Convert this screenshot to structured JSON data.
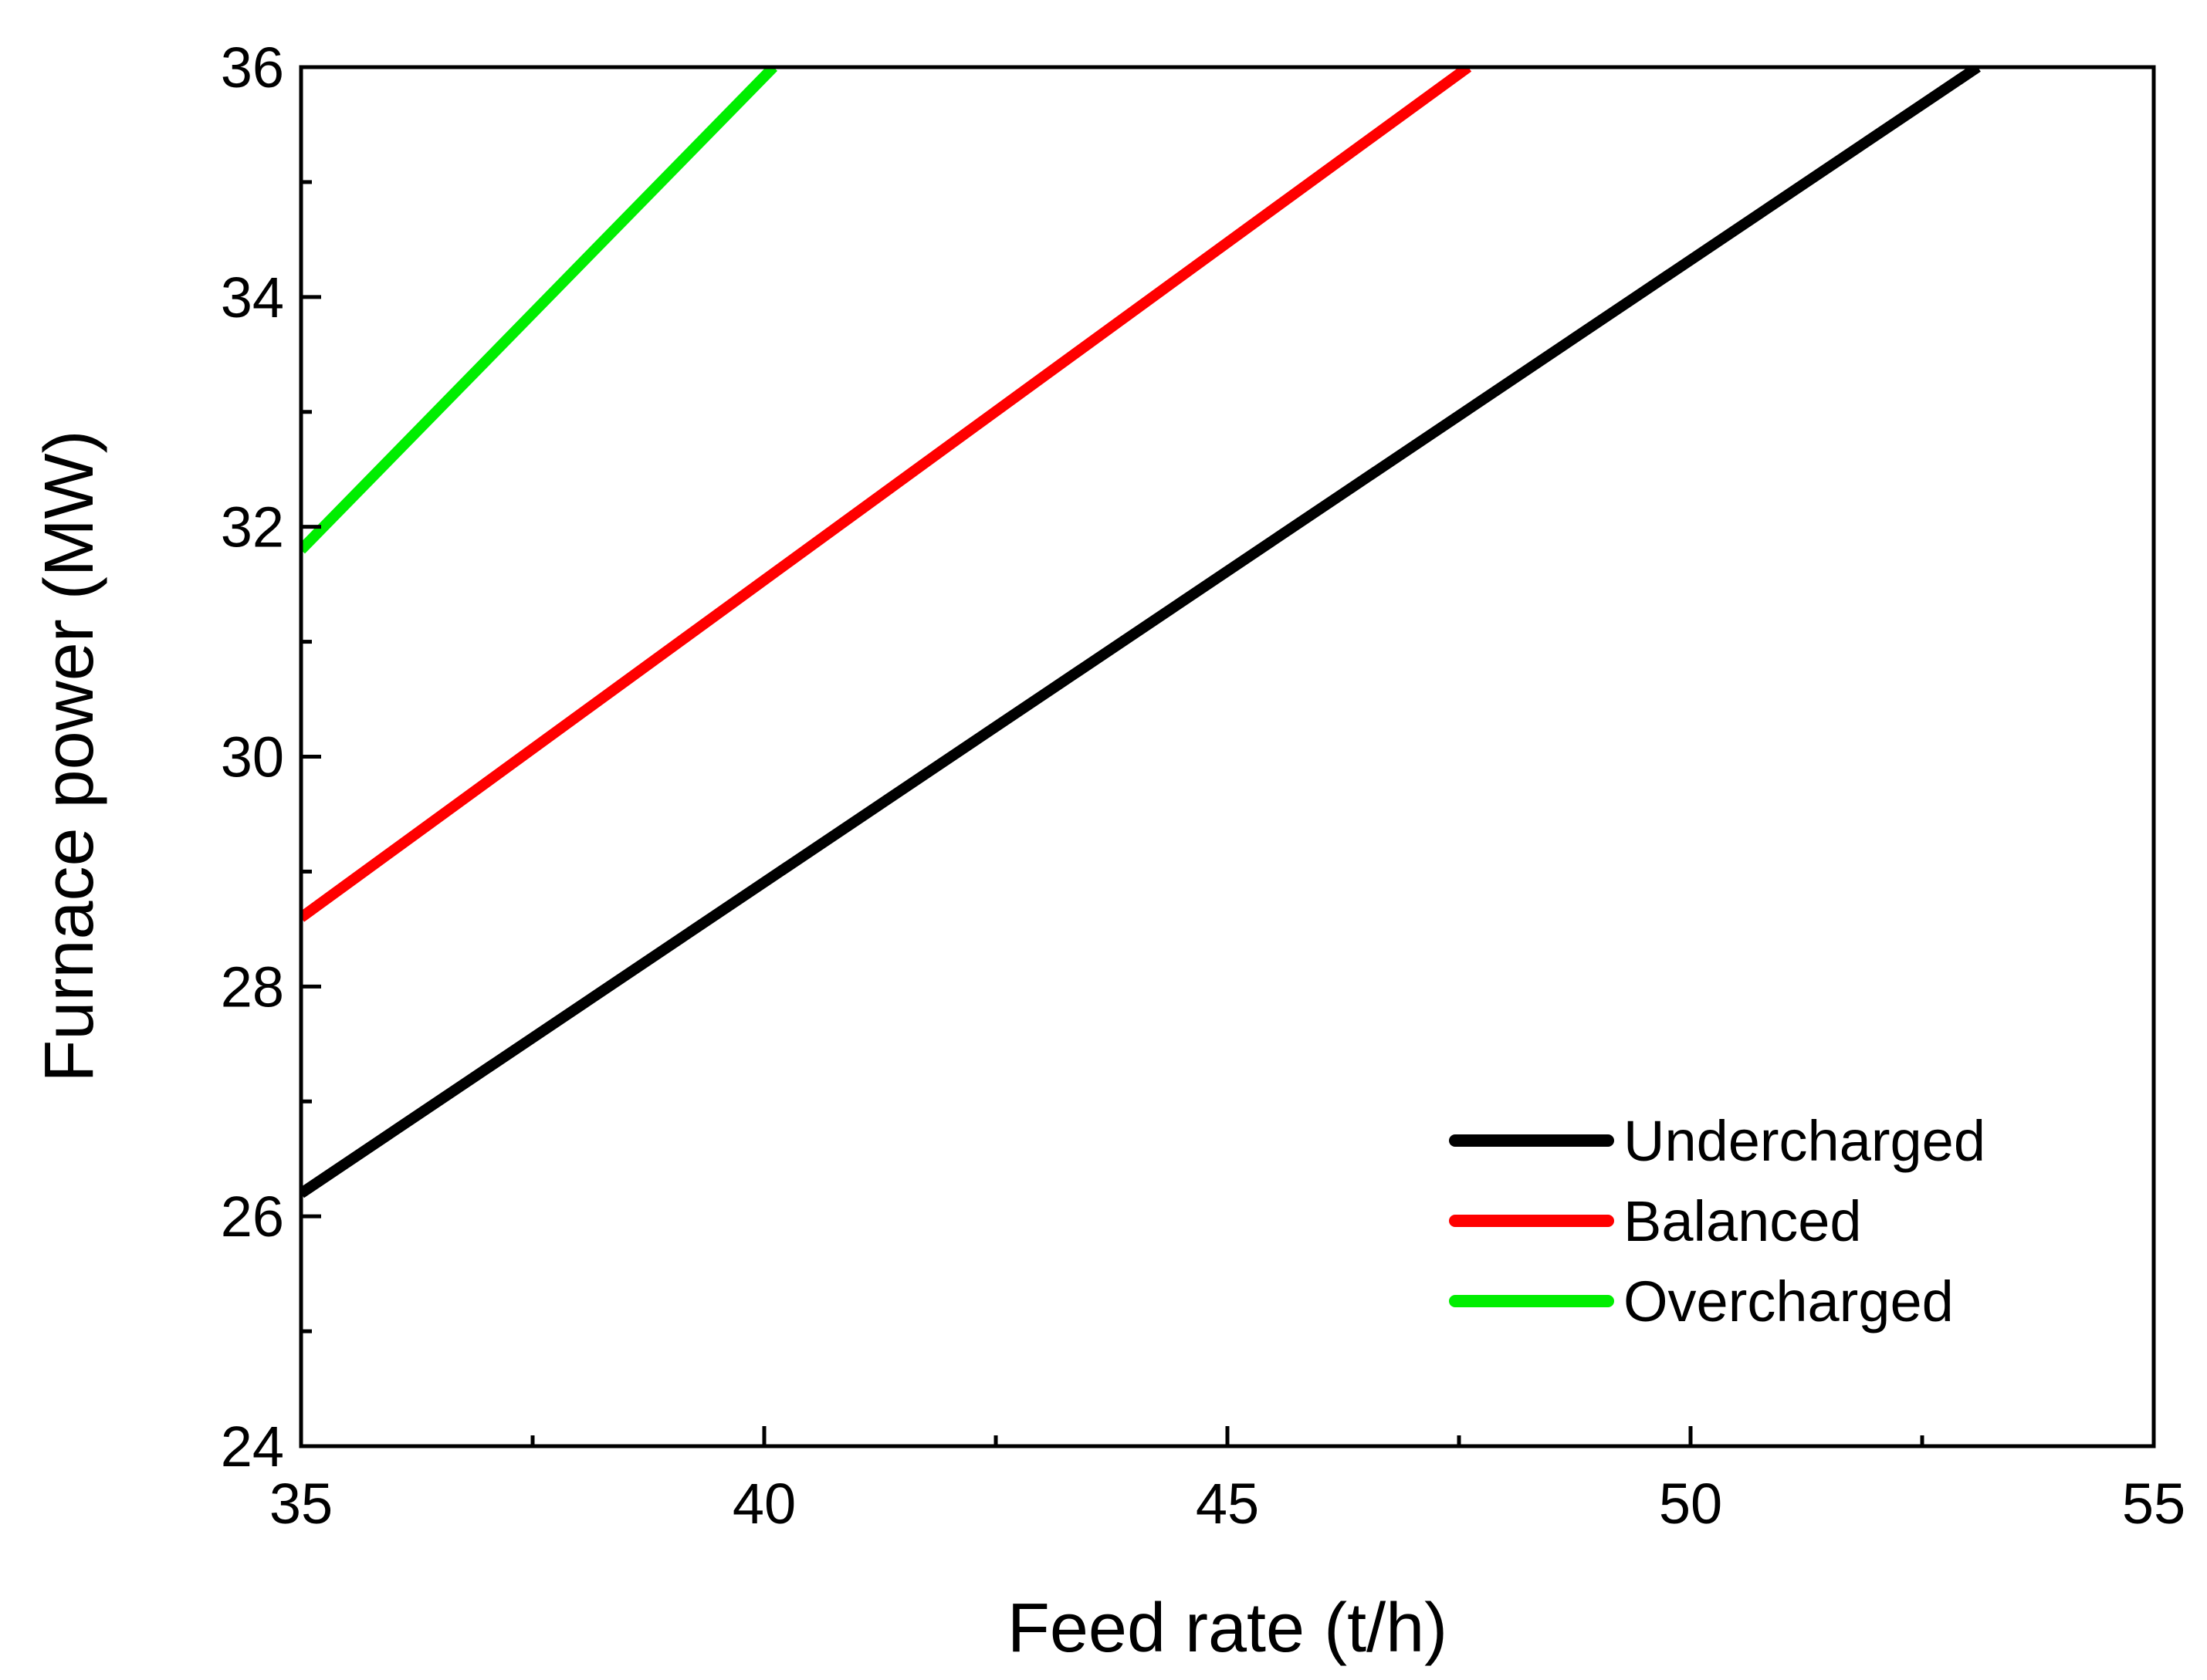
{
  "chart_data": {
    "type": "line",
    "title": "",
    "xlabel": "Feed rate (t/h)",
    "ylabel": "Furnace power (MW)",
    "xlim": [
      35,
      55
    ],
    "ylim": [
      24,
      36
    ],
    "x_ticks": [
      35,
      40,
      45,
      50,
      55
    ],
    "y_ticks": [
      24,
      26,
      28,
      30,
      32,
      34,
      36
    ],
    "x_tick_labels": [
      "35",
      "40",
      "45",
      "50",
      "55"
    ],
    "y_tick_labels": [
      "24",
      "26",
      "28",
      "30",
      "32",
      "34",
      "36"
    ],
    "x_minor_ticks": [
      37.5,
      42.5,
      47.5,
      52.5
    ],
    "y_minor_ticks": [
      25,
      27,
      29,
      31,
      33,
      35
    ],
    "grid": false,
    "legend_position": "bottom-right",
    "series": [
      {
        "name": "Undercharged",
        "color": "#000000",
        "x": [
          35,
          53.1
        ],
        "y": [
          26.2,
          36
        ]
      },
      {
        "name": "Balanced",
        "color": "#ff0000",
        "x": [
          35,
          47.6
        ],
        "y": [
          28.6,
          36
        ]
      },
      {
        "name": "Overcharged",
        "color": "#00ee00",
        "x": [
          35,
          40.1
        ],
        "y": [
          31.8,
          36
        ]
      }
    ]
  }
}
